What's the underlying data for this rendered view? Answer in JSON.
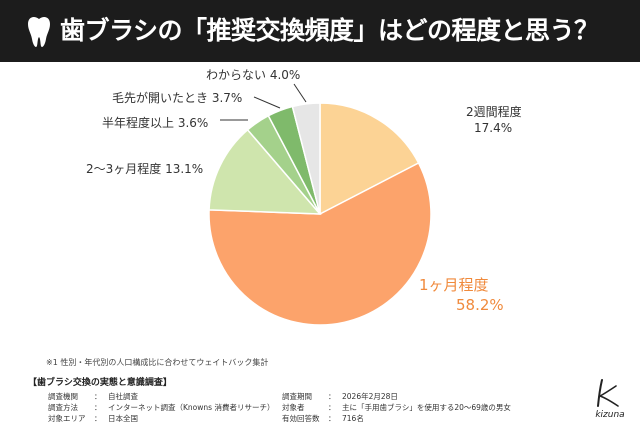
{
  "header": {
    "title": "歯ブラシの「推奨交換頻度」はどの程度と思う？"
  },
  "chart_data": {
    "type": "pie",
    "title": "歯ブラシの「推奨交換頻度」はどの程度と思う？",
    "slices": [
      {
        "label": "2週間程度",
        "value": 17.4,
        "display": "17.4%",
        "color": "#fcd395"
      },
      {
        "label": "1ヶ月程度",
        "value": 58.2,
        "display": "58.2%",
        "color": "#fca36b"
      },
      {
        "label": "2〜3ヶ月程度",
        "value": 13.1,
        "display": "13.1%",
        "color": "#cfe5ad"
      },
      {
        "label": "半年程度以上",
        "value": 3.6,
        "display": "3.6%",
        "color": "#a4d18b"
      },
      {
        "label": "毛先が開いたとき",
        "value": 3.7,
        "display": "3.7%",
        "color": "#7fba6b"
      },
      {
        "label": "わからない",
        "value": 4.0,
        "display": "4.0%",
        "color": "#e6e6e6"
      }
    ],
    "start_direction": "top",
    "order": "clockwise",
    "legend": "none (labels beside slices)"
  },
  "footnote": "※1 性別・年代別の人口構成比に合わせてウェイトバック集計",
  "survey": {
    "title": "【歯ブラシ交換の実態と意識調査】",
    "left": [
      {
        "label": "調査機関",
        "value": "自社調査"
      },
      {
        "label": "調査方法",
        "value": "インターネット調査（Knowns 消費者リサーチ）"
      },
      {
        "label": "対象エリア",
        "value": "日本全国"
      }
    ],
    "right": [
      {
        "label": "調査期間",
        "value": "2026年2月28日"
      },
      {
        "label": "対象者",
        "value": "主に「手用歯ブラシ」を使用する20～69歳の男女"
      },
      {
        "label": "有効回答数",
        "value": "716名"
      }
    ],
    "separator": "："
  },
  "brand": {
    "name": "kizuna"
  },
  "colors": {
    "header_bg": "#1c1c1c",
    "accent_label": "#f08a3c",
    "leader_line": "#333333"
  }
}
